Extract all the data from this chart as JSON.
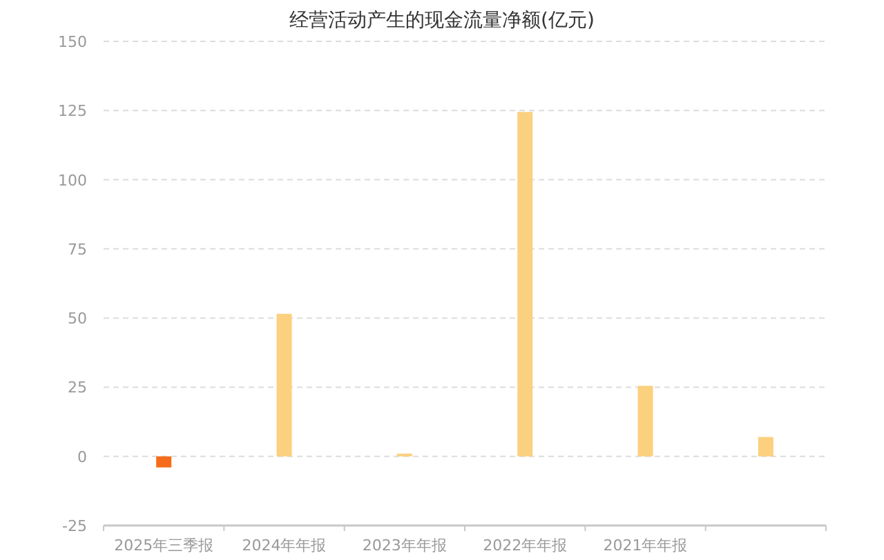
{
  "chart_data": {
    "type": "bar",
    "title": "经营活动产生的现金流量净额(亿元)",
    "categories": [
      "2025年三季报",
      "2024年年报",
      "2023年年报",
      "2022年年报",
      "2021年年报",
      null
    ],
    "values": [
      -4,
      51.5,
      1,
      124.5,
      25.5,
      7
    ],
    "colors": [
      "#f56c1b",
      "#fbd07f",
      "#fbd07f",
      "#fbd07f",
      "#fbd07f",
      "#fbd07f"
    ],
    "ylim": [
      -25,
      150
    ],
    "yticks": [
      -25,
      0,
      25,
      50,
      75,
      100,
      125,
      150
    ],
    "grid": "y"
  }
}
